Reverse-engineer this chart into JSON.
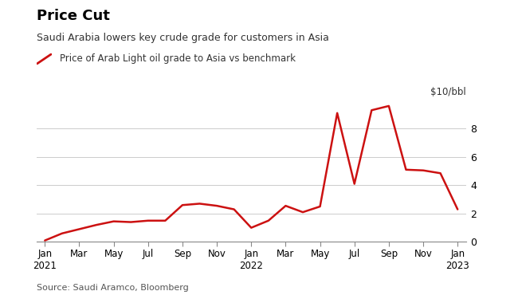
{
  "title": "Price Cut",
  "subtitle": "Saudi Arabia lowers key crude grade for customers in Asia",
  "legend_label": "Price of Arab Light oil grade to Asia vs benchmark",
  "unit_label": "$10/bbl",
  "source": "Source: Saudi Aramco, Bloomberg",
  "line_color": "#cc1111",
  "background_color": "#ffffff",
  "ylim": [
    0,
    10
  ],
  "yticks": [
    0,
    2,
    4,
    6,
    8
  ],
  "x_labels": [
    "Jan\n2021",
    "Mar",
    "May",
    "Jul",
    "Sep",
    "Nov",
    "Jan\n2022",
    "Mar",
    "May",
    "Jul",
    "Sep",
    "Nov",
    "Jan\n2023"
  ],
  "x_positions": [
    0,
    2,
    4,
    6,
    8,
    10,
    12,
    14,
    16,
    18,
    20,
    22,
    24
  ],
  "data_x": [
    0,
    1,
    2,
    3,
    4,
    5,
    6,
    7,
    8,
    9,
    10,
    11,
    12,
    13,
    14,
    15,
    16,
    17,
    18,
    19,
    20,
    21,
    22,
    23,
    24
  ],
  "data_y": [
    0.1,
    0.6,
    0.9,
    1.2,
    1.45,
    1.4,
    1.5,
    1.5,
    2.6,
    2.7,
    2.55,
    2.3,
    1.0,
    1.5,
    2.55,
    2.1,
    2.5,
    9.1,
    4.1,
    9.3,
    9.6,
    5.1,
    5.05,
    4.85,
    2.3
  ]
}
